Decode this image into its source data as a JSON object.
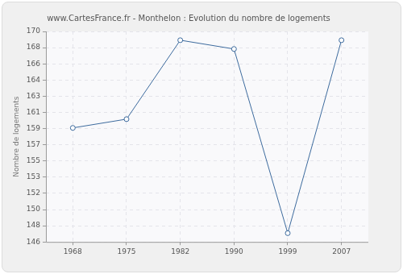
{
  "chart_data": {
    "type": "line",
    "title": "www.CartesFrance.fr - Monthelon : Evolution du nombre de logements",
    "y_label": "Nombre de logements",
    "categories": [
      "1968",
      "1975",
      "1982",
      "1990",
      "1999",
      "2007"
    ],
    "values": [
      159,
      160,
      169,
      168,
      147,
      169
    ],
    "color": "#3d6b9e",
    "marker": "circle",
    "ylim": [
      146,
      170
    ],
    "yticks": [
      146,
      {
        "value": 147.846,
        "label": "148"
      },
      {
        "value": 149.692,
        "label": "150"
      },
      {
        "value": 151.538,
        "label": "152"
      },
      {
        "value": 153.385,
        "label": "153"
      },
      {
        "value": 155.231,
        "label": "155"
      },
      {
        "value": 157.077,
        "label": "157"
      },
      {
        "value": 158.923,
        "label": "159"
      },
      {
        "value": 160.769,
        "label": "161"
      },
      {
        "value": 162.615,
        "label": "163"
      },
      {
        "value": 164.462,
        "label": "164"
      },
      {
        "value": 166.308,
        "label": "166"
      },
      {
        "value": 168.154,
        "label": "168"
      },
      170
    ],
    "grid": true
  }
}
